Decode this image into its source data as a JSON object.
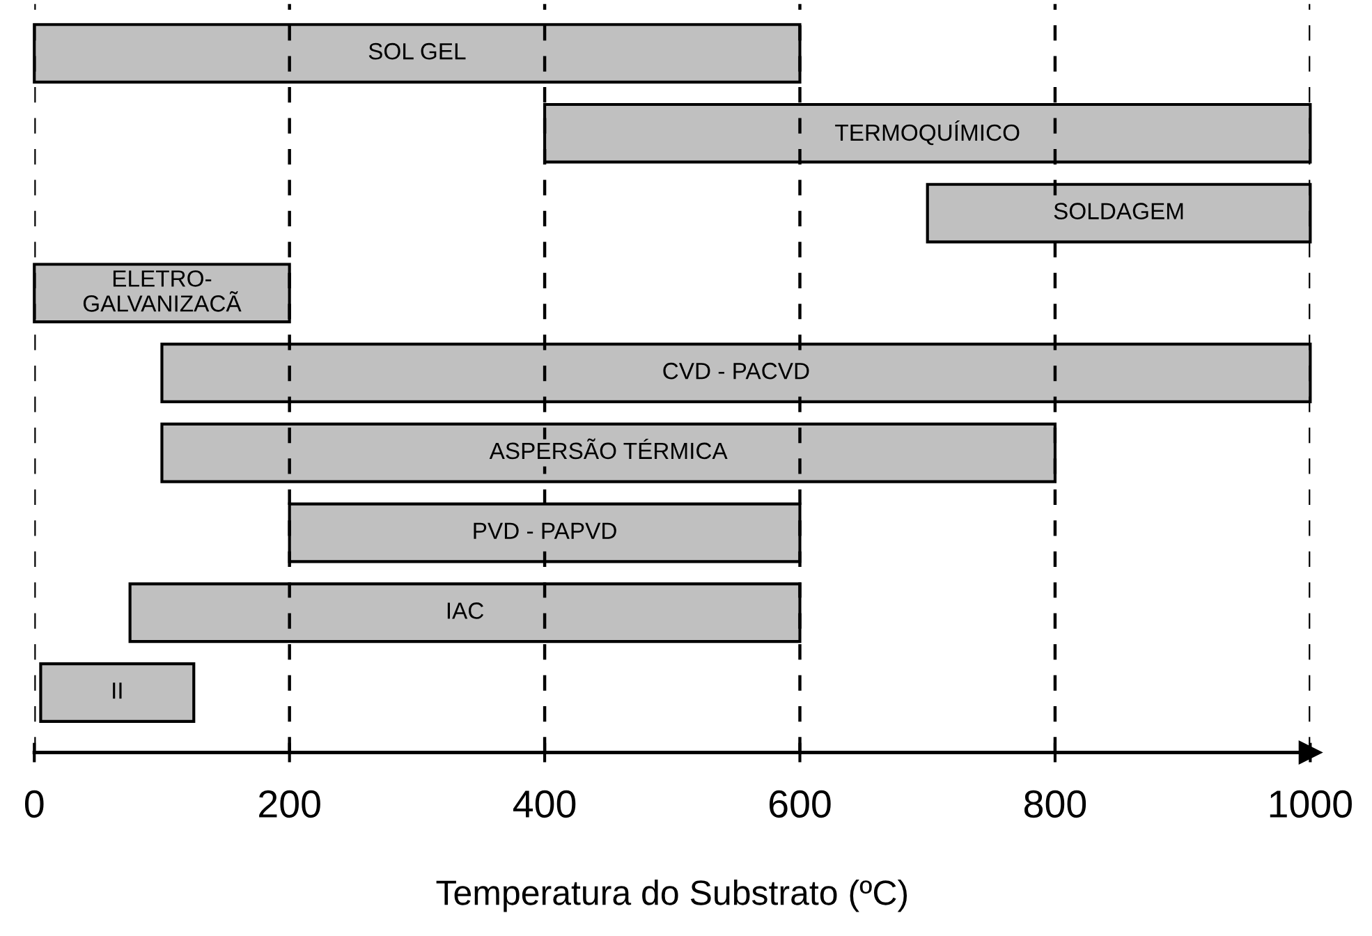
{
  "chart_data": {
    "type": "bar",
    "orientation": "horizontal",
    "xlabel": "Temperatura do Substrato (ºC)",
    "categories": [
      "SOL GEL",
      "TERMOQUÍMICO",
      "SOLDAGEM",
      "ELETRO-\nGALVANIZACÃ",
      "CVD - PACVD",
      "ASPERSÃO TÉRMICA",
      "PVD - PAPVD",
      "IAC",
      "II"
    ],
    "base": [
      0,
      400,
      700,
      0,
      100,
      100,
      200,
      75,
      5
    ],
    "values": [
      600,
      600,
      300,
      200,
      900,
      700,
      400,
      525,
      120
    ],
    "color": "#c0c0c0",
    "xlim": [
      0,
      1000
    ],
    "xticks": [
      0,
      200,
      400,
      600,
      800,
      1000
    ],
    "grid": "x"
  }
}
